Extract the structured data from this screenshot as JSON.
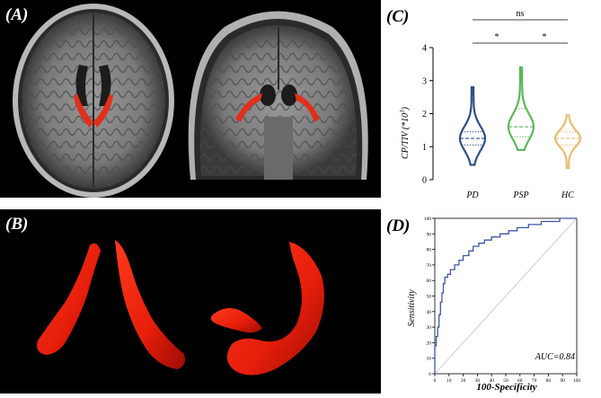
{
  "panels": {
    "a": "(A)",
    "b": "(B)",
    "c": "(C)",
    "d": "(D)"
  },
  "colors": {
    "pd": "#2e4f86",
    "psp": "#5cb85c",
    "hc": "#e9bd72",
    "roi": "#e0301c",
    "roc_line": "#3e55a8",
    "diagonal": "#c8c8c8"
  },
  "chart_data": [
    {
      "type": "violin",
      "panel": "C",
      "ylabel": "CP/TIV (*10^3)",
      "ylim": [
        0,
        4
      ],
      "yticks": [
        "0",
        "1",
        "2",
        "3",
        "4"
      ],
      "categories": [
        "PD",
        "PSP",
        "HC"
      ],
      "groups": [
        {
          "name": "PD",
          "min": 0.45,
          "q1": 1.05,
          "median": 1.25,
          "q3": 1.45,
          "max": 2.8
        },
        {
          "name": "PSP",
          "min": 0.9,
          "q1": 1.3,
          "median": 1.6,
          "q3": 2.15,
          "max": 3.4
        },
        {
          "name": "HC",
          "min": 0.35,
          "q1": 1.05,
          "median": 1.25,
          "q3": 1.45,
          "max": 1.95
        }
      ],
      "significance": [
        {
          "pair": [
            "PD",
            "PSP"
          ],
          "label": "*"
        },
        {
          "pair": [
            "PSP",
            "HC"
          ],
          "label": "*"
        },
        {
          "pair": [
            "PD",
            "HC"
          ],
          "label": "ns"
        }
      ]
    },
    {
      "type": "line",
      "panel": "D",
      "xlabel": "100-Specificity",
      "ylabel": "Sensitivity",
      "xlim": [
        0,
        100
      ],
      "ylim": [
        0,
        100
      ],
      "xticks": [
        "0",
        "10",
        "20",
        "30",
        "40",
        "50",
        "60",
        "70",
        "80",
        "90",
        "100"
      ],
      "yticks": [
        "0",
        "10",
        "20",
        "30",
        "40",
        "50",
        "60",
        "70",
        "80",
        "90",
        "100"
      ],
      "annotation": "AUC=0.84",
      "roc": [
        [
          0,
          0
        ],
        [
          0,
          18
        ],
        [
          1,
          18
        ],
        [
          1,
          24
        ],
        [
          2,
          24
        ],
        [
          2,
          30
        ],
        [
          3,
          30
        ],
        [
          3,
          38
        ],
        [
          4,
          38
        ],
        [
          4,
          46
        ],
        [
          5,
          46
        ],
        [
          5,
          52
        ],
        [
          6,
          52
        ],
        [
          6,
          58
        ],
        [
          7,
          58
        ],
        [
          7,
          62
        ],
        [
          9,
          62
        ],
        [
          9,
          64
        ],
        [
          11,
          64
        ],
        [
          11,
          67
        ],
        [
          14,
          67
        ],
        [
          14,
          70
        ],
        [
          17,
          70
        ],
        [
          17,
          73
        ],
        [
          20,
          73
        ],
        [
          20,
          76
        ],
        [
          24,
          76
        ],
        [
          24,
          79
        ],
        [
          27,
          79
        ],
        [
          27,
          82
        ],
        [
          31,
          82
        ],
        [
          31,
          84
        ],
        [
          35,
          84
        ],
        [
          35,
          86
        ],
        [
          40,
          86
        ],
        [
          40,
          88
        ],
        [
          46,
          88
        ],
        [
          46,
          90
        ],
        [
          52,
          90
        ],
        [
          52,
          92
        ],
        [
          58,
          92
        ],
        [
          58,
          94
        ],
        [
          66,
          94
        ],
        [
          66,
          96
        ],
        [
          75,
          96
        ],
        [
          75,
          98
        ],
        [
          88,
          98
        ],
        [
          88,
          100
        ],
        [
          100,
          100
        ]
      ]
    }
  ]
}
